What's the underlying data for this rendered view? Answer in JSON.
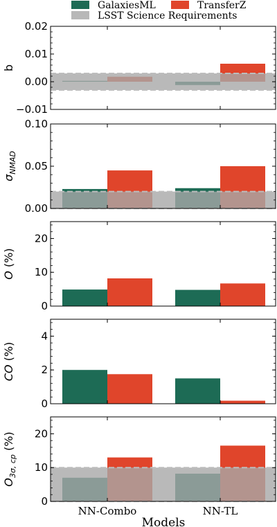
{
  "legend": {
    "items": [
      {
        "label": "GalaxiesML",
        "color": "#1d6b55"
      },
      {
        "label": "TransferZ",
        "color": "#e0452b"
      },
      {
        "label": "LSST Science Requirements",
        "color": "#b8b8b8"
      }
    ]
  },
  "xlabel": "Models",
  "categories": [
    "NN-Combo",
    "NN-TL"
  ],
  "colors": {
    "galaxiesml": "#1d6b55",
    "transferz": "#e0452b",
    "lsst": "#b8b8b8"
  },
  "chart_data": [
    {
      "type": "bar",
      "ylabel": "b",
      "categories": [
        "NN-Combo",
        "NN-TL"
      ],
      "series": [
        {
          "name": "GalaxiesML",
          "values": [
            0.0003,
            -0.0012
          ]
        },
        {
          "name": "TransferZ",
          "values": [
            0.0018,
            0.0065
          ]
        }
      ],
      "lsst_band": [
        -0.003,
        0.003
      ],
      "ylim": [
        -0.01,
        0.02
      ],
      "yticks": [
        -0.01,
        0.0,
        0.01,
        0.02
      ],
      "yticklabels": [
        "−0.01",
        "0.00",
        "0.01",
        "0.02"
      ]
    },
    {
      "type": "bar",
      "ylabel": "σ",
      "ylabel_sub": "NMAD",
      "categories": [
        "NN-Combo",
        "NN-TL"
      ],
      "series": [
        {
          "name": "GalaxiesML",
          "values": [
            0.023,
            0.024
          ]
        },
        {
          "name": "TransferZ",
          "values": [
            0.045,
            0.05
          ]
        }
      ],
      "lsst_band": [
        0.0,
        0.02
      ],
      "ylim": [
        0.0,
        0.1
      ],
      "yticks": [
        0.0,
        0.05,
        0.1
      ],
      "yticklabels": [
        "0.00",
        "0.05",
        "0.10"
      ]
    },
    {
      "type": "bar",
      "ylabel": "O (%)",
      "categories": [
        "NN-Combo",
        "NN-TL"
      ],
      "series": [
        {
          "name": "GalaxiesML",
          "values": [
            4.9,
            4.8
          ]
        },
        {
          "name": "TransferZ",
          "values": [
            8.2,
            6.7
          ]
        }
      ],
      "lsst_band": null,
      "ylim": [
        0,
        25
      ],
      "yticks": [
        0,
        10,
        20
      ],
      "yticklabels": [
        "0",
        "10",
        "20"
      ]
    },
    {
      "type": "bar",
      "ylabel": "CO (%)",
      "categories": [
        "NN-Combo",
        "NN-TL"
      ],
      "series": [
        {
          "name": "GalaxiesML",
          "values": [
            2.0,
            1.5
          ]
        },
        {
          "name": "TransferZ",
          "values": [
            1.75,
            0.18
          ]
        }
      ],
      "lsst_band": null,
      "ylim": [
        0,
        5
      ],
      "yticks": [
        0,
        2,
        4
      ],
      "yticklabels": [
        "0",
        "2",
        "4"
      ]
    },
    {
      "type": "bar",
      "ylabel": "O",
      "ylabel_sub": "3σ, cp",
      "ylabel_suffix": " (%)",
      "categories": [
        "NN-Combo",
        "NN-TL"
      ],
      "series": [
        {
          "name": "GalaxiesML",
          "values": [
            7.0,
            8.2
          ]
        },
        {
          "name": "TransferZ",
          "values": [
            13.0,
            16.5
          ]
        }
      ],
      "lsst_band": [
        0,
        10
      ],
      "ylim": [
        0,
        25
      ],
      "yticks": [
        0,
        10,
        20
      ],
      "yticklabels": [
        "0",
        "10",
        "20"
      ]
    }
  ]
}
